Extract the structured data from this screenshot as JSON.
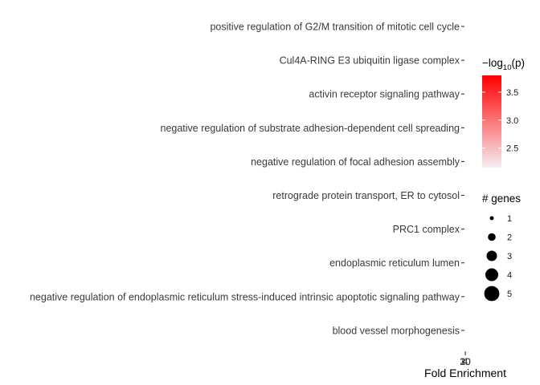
{
  "chart_data": {
    "type": "scatter",
    "title": "",
    "xlabel": "Fold Enrichment",
    "ylabel": "",
    "x_tick_labels": [
      "4",
      "10",
      "20",
      "30"
    ],
    "categories": [
      "positive regulation of G2/M transition of mitotic cell cycle",
      "Cul4A-RING E3 ubiquitin ligase complex",
      "activin receptor signaling pathway",
      "negative regulation of substrate adhesion-dependent cell spreading",
      "negative regulation of focal adhesion assembly",
      "retrograde protein transport, ER to cytosol",
      "PRC1 complex",
      "endoplasmic reticulum lumen",
      "negative regulation of endoplasmic reticulum stress-induced intrinsic apoptotic signaling pathway",
      "blood vessel morphogenesis"
    ],
    "grid": false,
    "legend_position": "right",
    "color_legend": {
      "title_prefix": "−log",
      "title_sub": "10",
      "title_suffix": "(p)",
      "low_color": "#f5eef3",
      "high_color": "#ff0000",
      "range": [
        2.15,
        3.8
      ],
      "ticks": [
        "2.5",
        "3.0",
        "3.5"
      ]
    },
    "size_legend": {
      "title": "# genes",
      "labels": [
        "1",
        "2",
        "3",
        "4",
        "5"
      ]
    }
  }
}
